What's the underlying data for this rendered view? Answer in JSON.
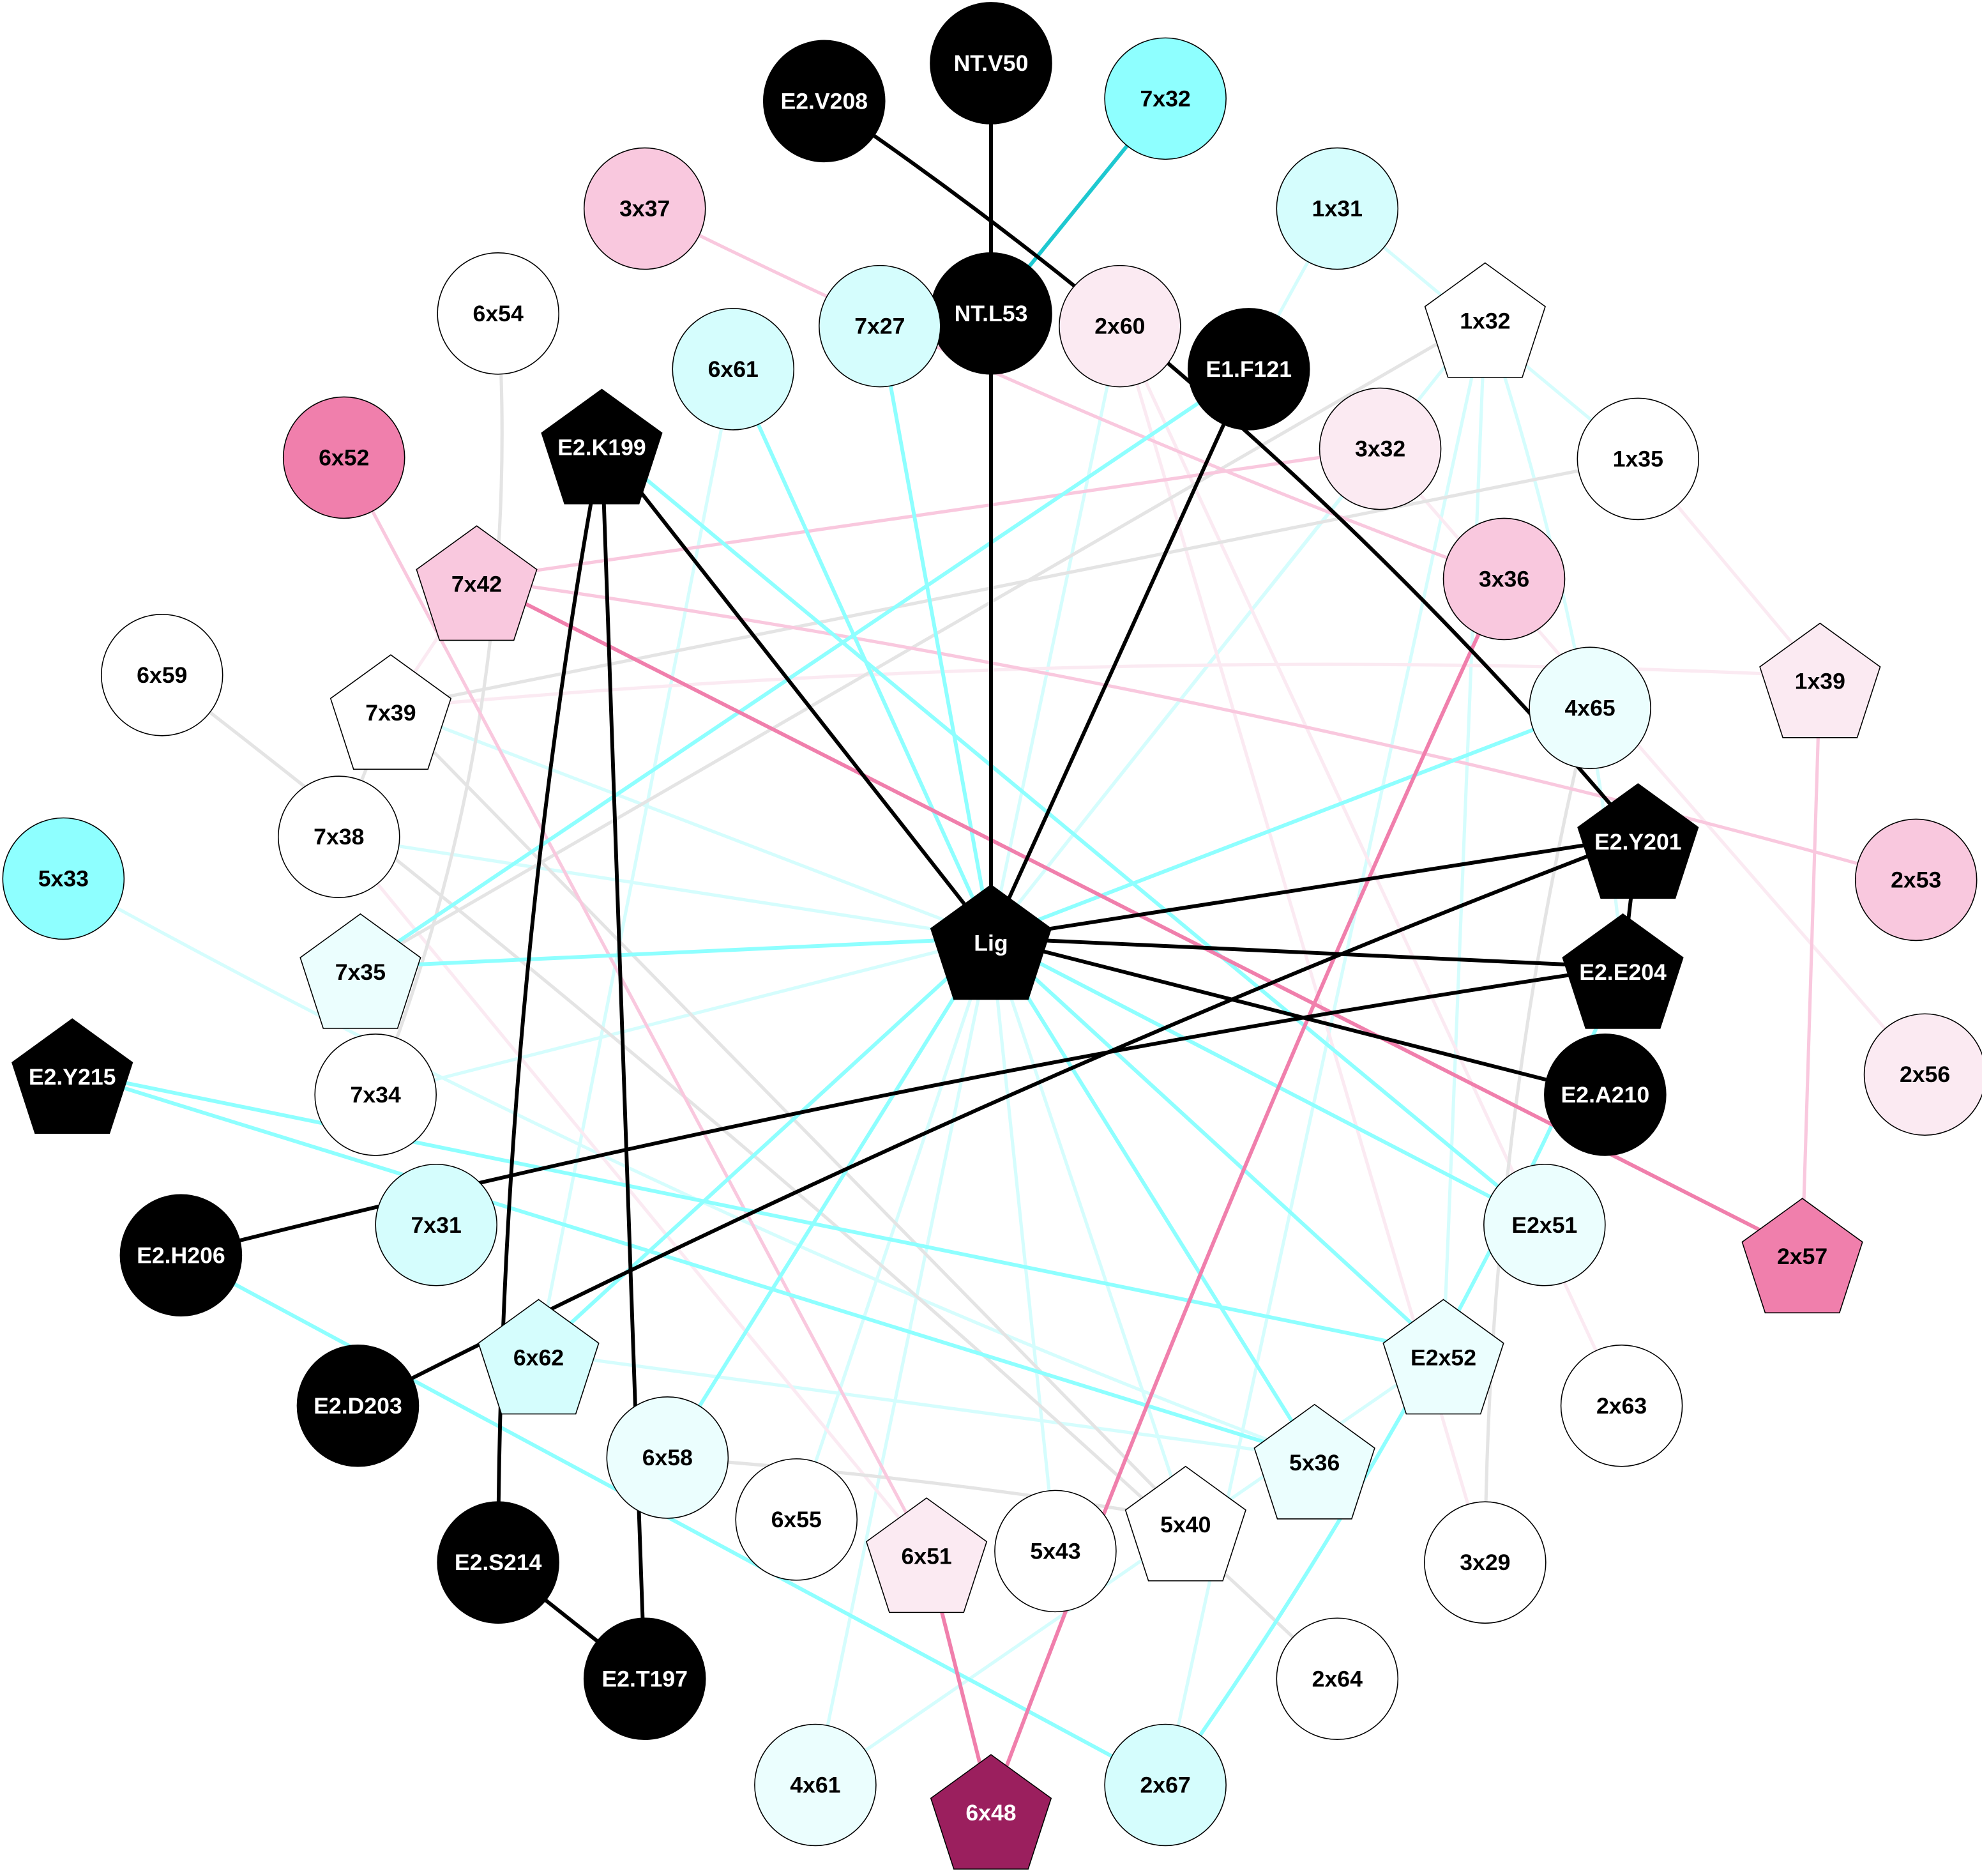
{
  "colors": {
    "black": "#000000",
    "cyan": "#8effff",
    "light_cyan": "#d5fdfd",
    "pale_cyan": "#ebfefe",
    "teal": "#1ec8d0",
    "pink": "#f9c8de",
    "light_pink": "#fbeaf2",
    "hot_pink": "#f07fac",
    "magenta": "#9b1f5e",
    "gray": "#e4e4e4",
    "white": "#ffffff"
  },
  "nodes": [
    {
      "id": "NT.V50",
      "shape": "circle",
      "fill": "black"
    },
    {
      "id": "E2.V208",
      "shape": "circle",
      "fill": "black"
    },
    {
      "id": "7x32",
      "shape": "circle",
      "fill": "cyan"
    },
    {
      "id": "3x37",
      "shape": "circle",
      "fill": "pink"
    },
    {
      "id": "1x31",
      "shape": "circle",
      "fill": "light_cyan"
    },
    {
      "id": "6x54",
      "shape": "circle",
      "fill": "white"
    },
    {
      "id": "NT.L53",
      "shape": "circle",
      "fill": "black"
    },
    {
      "id": "7x27",
      "shape": "circle",
      "fill": "light_cyan"
    },
    {
      "id": "2x60",
      "shape": "circle",
      "fill": "light_pink"
    },
    {
      "id": "1x32",
      "shape": "pentagon",
      "fill": "white"
    },
    {
      "id": "6x61",
      "shape": "circle",
      "fill": "light_cyan"
    },
    {
      "id": "E1.F121",
      "shape": "circle",
      "fill": "black"
    },
    {
      "id": "6x52",
      "shape": "circle",
      "fill": "hot_pink"
    },
    {
      "id": "E2.K199",
      "shape": "pentagon",
      "fill": "black"
    },
    {
      "id": "3x32",
      "shape": "circle",
      "fill": "light_pink"
    },
    {
      "id": "1x35",
      "shape": "circle",
      "fill": "white"
    },
    {
      "id": "7x42",
      "shape": "pentagon",
      "fill": "pink"
    },
    {
      "id": "3x36",
      "shape": "circle",
      "fill": "pink"
    },
    {
      "id": "6x59",
      "shape": "circle",
      "fill": "white"
    },
    {
      "id": "7x39",
      "shape": "pentagon",
      "fill": "white"
    },
    {
      "id": "1x39",
      "shape": "pentagon",
      "fill": "light_pink"
    },
    {
      "id": "4x65",
      "shape": "circle",
      "fill": "pale_cyan"
    },
    {
      "id": "E2.Y201",
      "shape": "pentagon",
      "fill": "black"
    },
    {
      "id": "7x38",
      "shape": "circle",
      "fill": "white"
    },
    {
      "id": "5x33",
      "shape": "circle",
      "fill": "cyan"
    },
    {
      "id": "2x53",
      "shape": "circle",
      "fill": "pink"
    },
    {
      "id": "Lig",
      "shape": "pentagon",
      "fill": "black"
    },
    {
      "id": "7x35",
      "shape": "pentagon",
      "fill": "pale_cyan"
    },
    {
      "id": "E2.E204",
      "shape": "pentagon",
      "fill": "black"
    },
    {
      "id": "E2.Y215",
      "shape": "pentagon",
      "fill": "black"
    },
    {
      "id": "7x34",
      "shape": "circle",
      "fill": "white"
    },
    {
      "id": "2x56",
      "shape": "circle",
      "fill": "light_pink"
    },
    {
      "id": "E2.A210",
      "shape": "circle",
      "fill": "black"
    },
    {
      "id": "7x31",
      "shape": "circle",
      "fill": "light_cyan"
    },
    {
      "id": "E2x51",
      "shape": "circle",
      "fill": "pale_cyan"
    },
    {
      "id": "E2.H206",
      "shape": "circle",
      "fill": "black"
    },
    {
      "id": "2x57",
      "shape": "pentagon",
      "fill": "hot_pink"
    },
    {
      "id": "6x62",
      "shape": "pentagon",
      "fill": "light_cyan"
    },
    {
      "id": "E2x52",
      "shape": "pentagon",
      "fill": "pale_cyan"
    },
    {
      "id": "E2.D203",
      "shape": "circle",
      "fill": "black"
    },
    {
      "id": "2x63",
      "shape": "circle",
      "fill": "white"
    },
    {
      "id": "6x58",
      "shape": "circle",
      "fill": "pale_cyan"
    },
    {
      "id": "5x36",
      "shape": "pentagon",
      "fill": "pale_cyan"
    },
    {
      "id": "6x55",
      "shape": "circle",
      "fill": "white"
    },
    {
      "id": "6x51",
      "shape": "pentagon",
      "fill": "light_pink"
    },
    {
      "id": "5x43",
      "shape": "circle",
      "fill": "white"
    },
    {
      "id": "5x40",
      "shape": "pentagon",
      "fill": "white"
    },
    {
      "id": "3x29",
      "shape": "circle",
      "fill": "white"
    },
    {
      "id": "E2.S214",
      "shape": "circle",
      "fill": "black"
    },
    {
      "id": "E2.T197",
      "shape": "circle",
      "fill": "black"
    },
    {
      "id": "2x64",
      "shape": "circle",
      "fill": "white"
    },
    {
      "id": "4x61",
      "shape": "circle",
      "fill": "pale_cyan"
    },
    {
      "id": "6x48",
      "shape": "pentagon",
      "fill": "magenta"
    },
    {
      "id": "2x67",
      "shape": "circle",
      "fill": "light_cyan"
    }
  ],
  "edges": [
    [
      "Lig",
      "7x39",
      "light_cyan"
    ],
    [
      "Lig",
      "7x38",
      "light_cyan"
    ],
    [
      "Lig",
      "7x34",
      "light_cyan"
    ],
    [
      "Lig",
      "6x55",
      "light_cyan"
    ],
    [
      "Lig",
      "5x43",
      "light_cyan"
    ],
    [
      "Lig",
      "5x40",
      "light_cyan"
    ],
    [
      "Lig",
      "4x61",
      "light_cyan"
    ],
    [
      "Lig",
      "3x32",
      "light_cyan"
    ],
    [
      "Lig",
      "2x60",
      "light_cyan"
    ],
    [
      "Lig",
      "1x32",
      "light_cyan"
    ],
    [
      "6x61",
      "6x62",
      "light_cyan"
    ],
    [
      "1x31",
      "E1.F121",
      "light_cyan"
    ],
    [
      "1x31",
      "1x35",
      "light_cyan"
    ],
    [
      "1x32",
      "E2x52",
      "light_cyan"
    ],
    [
      "1x32",
      "E2.E204",
      "light_cyan"
    ],
    [
      "5x33",
      "5x36",
      "light_cyan"
    ],
    [
      "6x62",
      "5x36",
      "light_cyan"
    ],
    [
      "4x61",
      "E2x52",
      "light_cyan"
    ],
    [
      "2x67",
      "1x32",
      "light_cyan"
    ],
    [
      "2x60",
      "3x29",
      "light_pink"
    ],
    [
      "3x32",
      "2x56",
      "light_pink"
    ],
    [
      "2x60",
      "2x63",
      "light_pink"
    ],
    [
      "1x35",
      "1x39",
      "light_pink"
    ],
    [
      "7x38",
      "6x51",
      "light_pink"
    ],
    [
      "7x42",
      "7x39",
      "light_pink"
    ],
    [
      "7x39",
      "1x39",
      "light_pink"
    ],
    [
      "6x54",
      "7x34",
      "gray"
    ],
    [
      "6x59",
      "2x64",
      "gray"
    ],
    [
      "7x39",
      "5x40",
      "gray"
    ],
    [
      "1x32",
      "7x35",
      "gray"
    ],
    [
      "1x35",
      "7x39",
      "gray"
    ],
    [
      "6x58",
      "5x40",
      "gray"
    ],
    [
      "3x29",
      "4x65",
      "gray"
    ],
    [
      "7x39",
      "7x38",
      "gray"
    ],
    [
      "3x37",
      "3x36",
      "pink"
    ],
    [
      "7x42",
      "3x32",
      "pink"
    ],
    [
      "7x42",
      "2x53",
      "pink"
    ],
    [
      "6x52",
      "6x51",
      "pink"
    ],
    [
      "1x39",
      "2x57",
      "pink"
    ],
    [
      "E1.F121",
      "7x35",
      "cyan"
    ],
    [
      "Lig",
      "7x35",
      "cyan"
    ],
    [
      "Lig",
      "6x61",
      "cyan"
    ],
    [
      "Lig",
      "7x27",
      "cyan"
    ],
    [
      "E2.K199",
      "E2x51",
      "cyan"
    ],
    [
      "Lig",
      "4x65",
      "cyan"
    ],
    [
      "Lig",
      "6x62",
      "cyan"
    ],
    [
      "Lig",
      "6x58",
      "cyan"
    ],
    [
      "Lig",
      "5x36",
      "cyan"
    ],
    [
      "Lig",
      "E2x52",
      "cyan"
    ],
    [
      "Lig",
      "E2x51",
      "cyan"
    ],
    [
      "E2.Y215",
      "E2x52",
      "cyan"
    ],
    [
      "E2.Y215",
      "5x36",
      "cyan"
    ],
    [
      "E2.H206",
      "2x67",
      "cyan"
    ],
    [
      "2x67",
      "E2.E204",
      "cyan"
    ],
    [
      "7x32",
      "NT.L53",
      "teal"
    ],
    [
      "7x42",
      "2x57",
      "hot_pink"
    ],
    [
      "6x51",
      "6x48",
      "hot_pink"
    ],
    [
      "3x36",
      "6x48",
      "hot_pink"
    ],
    [
      "NT.V50",
      "NT.L53",
      "black"
    ],
    [
      "NT.L53",
      "Lig",
      "black"
    ],
    [
      "E2.V208",
      "E2.Y201",
      "black"
    ],
    [
      "E1.F121",
      "Lig",
      "black"
    ],
    [
      "E2.K199",
      "Lig",
      "black"
    ],
    [
      "E2.K199",
      "E2.T197",
      "black"
    ],
    [
      "E2.K199",
      "E2.S214",
      "black"
    ],
    [
      "E2.S214",
      "E2.T197",
      "black"
    ],
    [
      "Lig",
      "E2.Y201",
      "black"
    ],
    [
      "Lig",
      "E2.E204",
      "black"
    ],
    [
      "Lig",
      "E2.A210",
      "black"
    ],
    [
      "E2.Y201",
      "E2.E204",
      "black"
    ],
    [
      "E2.Y201",
      "E2.D203",
      "black"
    ],
    [
      "E2.E204",
      "E2.H206",
      "black"
    ]
  ]
}
